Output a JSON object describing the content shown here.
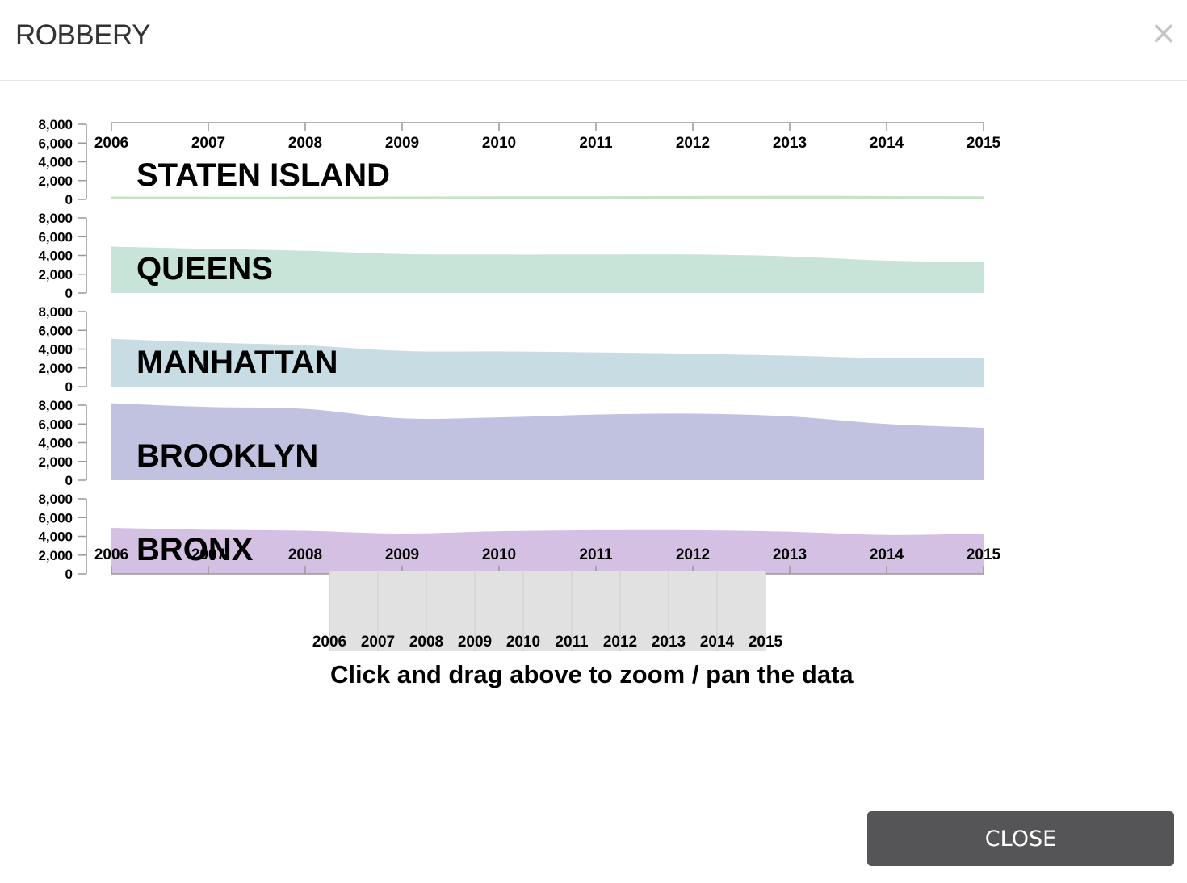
{
  "modal": {
    "title": "ROBBERY",
    "close_icon": "×",
    "close_button": "CLOSE"
  },
  "hint": "Click and drag above to zoom / pan the data",
  "chart_data": {
    "type": "area",
    "x": [
      2006,
      2007,
      2008,
      2009,
      2010,
      2011,
      2012,
      2013,
      2014,
      2015
    ],
    "ylim": [
      0,
      8000
    ],
    "yticks": [
      0,
      2000,
      4000,
      6000,
      8000
    ],
    "series": [
      {
        "name": "STATEN ISLAND",
        "color": "#c8e2c6",
        "values": [
          300,
          280,
          290,
          300,
          320,
          330,
          350,
          380,
          340,
          320
        ]
      },
      {
        "name": "QUEENS",
        "color": "#c8e4d8",
        "values": [
          4950,
          4700,
          4500,
          4150,
          4100,
          4100,
          4100,
          3900,
          3450,
          3300
        ]
      },
      {
        "name": "MANHATTAN",
        "color": "#c8dce4",
        "values": [
          5100,
          4700,
          4400,
          3800,
          3750,
          3650,
          3500,
          3300,
          3050,
          3100
        ]
      },
      {
        "name": "BROOKLYN",
        "color": "#c0c2e0",
        "values": [
          8200,
          7800,
          7600,
          6600,
          6700,
          7000,
          7100,
          6800,
          6000,
          5600
        ]
      },
      {
        "name": "BRONX",
        "color": "#d3c0e2",
        "values": [
          4900,
          4700,
          4600,
          4300,
          4550,
          4650,
          4650,
          4500,
          4150,
          4300
        ]
      }
    ],
    "brush": {
      "selected": [
        2006,
        2015
      ]
    },
    "colors": {
      "axis": "#999999",
      "brush_bg": "#e6e6e6",
      "brush_grid": "#d9d9d9"
    }
  }
}
